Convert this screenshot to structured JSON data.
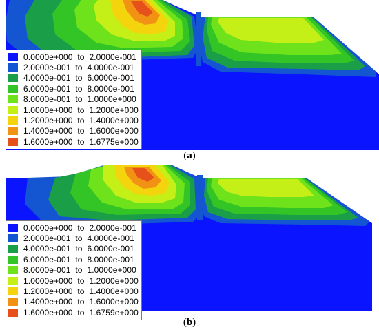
{
  "colors": {
    "c0": "#0a14ff",
    "c1": "#1456d2",
    "c2": "#1a9e48",
    "c3": "#33c425",
    "c4": "#6ee21a",
    "c5": "#c4ef17",
    "c6": "#f4d40c",
    "c7": "#f29215",
    "c8": "#e6501a"
  },
  "panels": [
    {
      "label_prefix": "(",
      "label": "a",
      "label_suffix": ")",
      "legend": [
        "0.0000e+000  to  2.0000e-001",
        "2.0000e-001  to  4.0000e-001",
        "4.0000e-001  to  6.0000e-001",
        "6.0000e-001  to  8.0000e-001",
        "8.0000e-001  to  1.0000e+000",
        "1.0000e+000  to  1.2000e+000",
        "1.2000e+000  to  1.4000e+000",
        "1.4000e+000  to  1.6000e+000",
        "1.6000e+000  to  1.6775e+000"
      ]
    },
    {
      "label_prefix": "(",
      "label": "b",
      "label_suffix": ")",
      "legend": [
        "0.0000e+000  to  2.0000e-001",
        "2.0000e-001  to  4.0000e-001",
        "4.0000e-001  to  6.0000e-001",
        "6.0000e-001  to  8.0000e-001",
        "8.0000e-001  to  1.0000e+000",
        "1.0000e+000  to  1.2000e+000",
        "1.2000e+000  to  1.4000e+000",
        "1.4000e+000  to  1.6000e+000",
        "1.6000e+000  to  1.6759e+000"
      ]
    }
  ]
}
